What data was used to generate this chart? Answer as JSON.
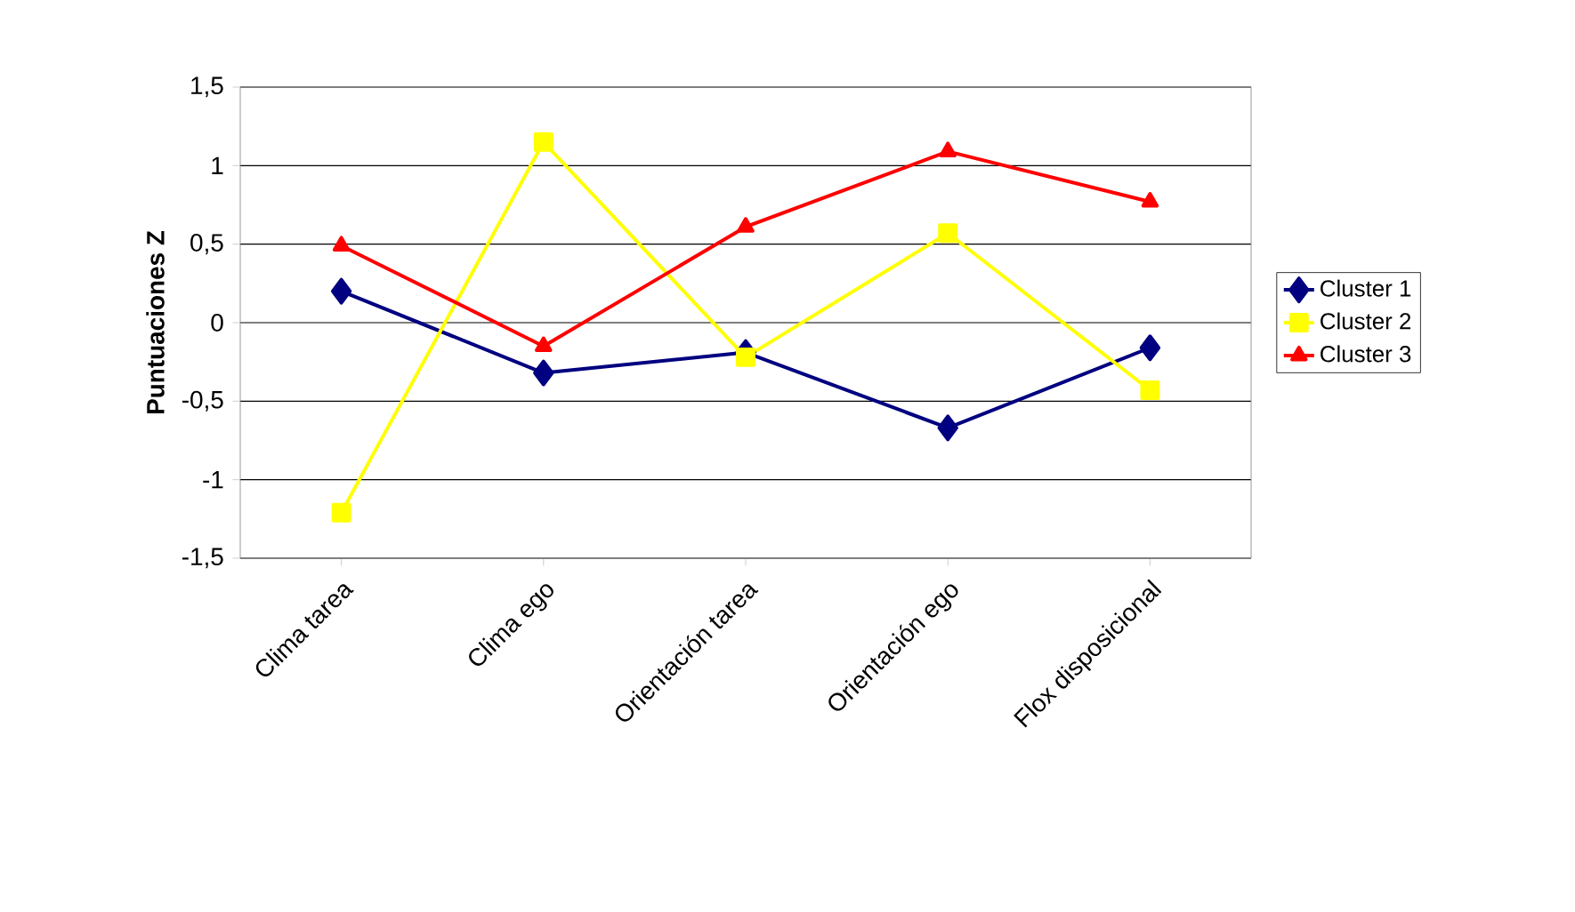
{
  "chart_data": {
    "type": "line",
    "ylabel": "Puntuaciones Z",
    "categories": [
      "Clima tarea",
      "Clima ego",
      "Orientación tarea",
      "Orientación ego",
      "Flox disposicional"
    ],
    "series": [
      {
        "name": "Cluster 1",
        "color": "#000080",
        "marker": "diamond",
        "values": [
          0.2,
          -0.32,
          -0.19,
          -0.67,
          -0.16
        ]
      },
      {
        "name": "Cluster 2",
        "color": "#ffff00",
        "marker": "square",
        "values": [
          -1.21,
          1.15,
          -0.22,
          0.57,
          -0.43
        ]
      },
      {
        "name": "Cluster 3",
        "color": "#ff0000",
        "marker": "triangle",
        "values": [
          0.49,
          -0.15,
          0.61,
          1.09,
          0.77
        ]
      }
    ],
    "ylim": [
      -1.5,
      1.5
    ],
    "yticks": [
      {
        "value": -1.5,
        "label": "-1,5"
      },
      -1,
      {
        "value": -0.5,
        "label": "-0,5"
      },
      0,
      {
        "value": 0.5,
        "label": "0,5"
      },
      1,
      {
        "value": 1.5,
        "label": "1,5"
      }
    ],
    "grid": "y",
    "legend": "right",
    "line_style": "solid"
  }
}
